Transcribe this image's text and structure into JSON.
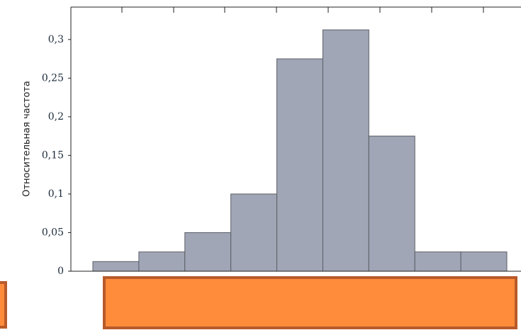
{
  "chart_data": {
    "type": "bar",
    "y_label": "Относительная частота",
    "categories": [
      null,
      null,
      null,
      null,
      null,
      null,
      null,
      null,
      null
    ],
    "values": [
      0.0125,
      0.025,
      0.05,
      0.1,
      0.275,
      0.3125,
      0.175,
      0.025,
      0.025
    ],
    "color": "#a0a6b5",
    "ylim": [
      0,
      0.342
    ],
    "yticks": [
      0,
      {
        "value": 0.05,
        "label": "0,05"
      },
      {
        "value": 0.1,
        "label": "0,1"
      },
      {
        "value": 0.15,
        "label": "0,15"
      },
      {
        "value": 0.2,
        "label": "0,2"
      },
      {
        "value": 0.25,
        "label": "0,25"
      },
      {
        "value": 0.3,
        "label": "0,3"
      }
    ]
  }
}
